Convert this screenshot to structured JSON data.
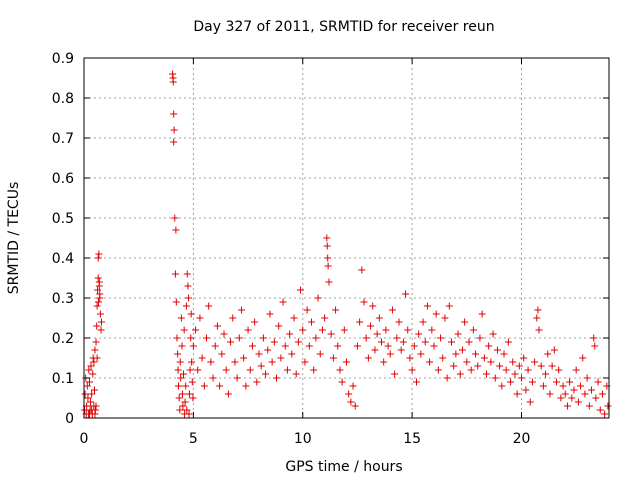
{
  "chart_data": {
    "type": "scatter",
    "title": "Day 327 of 2011, SRMTID for receiver reun",
    "xlabel": "GPS time / hours",
    "ylabel": "SRMTID / TECUs",
    "xlim": [
      0,
      24
    ],
    "ylim": [
      0,
      0.9
    ],
    "x_ticks": [
      0,
      5,
      10,
      15,
      20
    ],
    "y_ticks": [
      0,
      0.1,
      0.2,
      0.3,
      0.4,
      0.5,
      0.6,
      0.7,
      0.8,
      0.9
    ],
    "x_tick_labels": [
      "0",
      "5",
      "10",
      "15",
      "20"
    ],
    "y_tick_labels": [
      "0",
      "0.1",
      "0.2",
      "0.3",
      "0.4",
      "0.5",
      "0.6",
      "0.7",
      "0.8",
      "0.9"
    ],
    "grid": true,
    "marker": "+",
    "series": [
      {
        "name": "reun",
        "color": "#e00000",
        "points": [
          [
            0.02,
            0.02
          ],
          [
            0.05,
            0.06
          ],
          [
            0.08,
            0.1
          ],
          [
            0.1,
            0.01
          ],
          [
            0.12,
            0.03
          ],
          [
            0.15,
            0.08
          ],
          [
            0.18,
            0.05
          ],
          [
            0.2,
            0.01
          ],
          [
            0.22,
            0.12
          ],
          [
            0.25,
            0.09
          ],
          [
            0.28,
            0.02
          ],
          [
            0.3,
            0.04
          ],
          [
            0.32,
            0.13
          ],
          [
            0.35,
            0.06
          ],
          [
            0.38,
            0.01
          ],
          [
            0.4,
            0.11
          ],
          [
            0.42,
            0.15
          ],
          [
            0.45,
            0.03
          ],
          [
            0.48,
            0.07
          ],
          [
            0.5,
            0.17
          ],
          [
            0.52,
            0.02
          ],
          [
            0.55,
            0.19
          ],
          [
            0.58,
            0.23
          ],
          [
            0.6,
            0.28
          ],
          [
            0.62,
            0.32
          ],
          [
            0.65,
            0.35
          ],
          [
            0.68,
            0.41
          ],
          [
            0.7,
            0.33
          ],
          [
            0.72,
            0.3
          ],
          [
            0.75,
            0.26
          ],
          [
            0.78,
            0.22
          ],
          [
            0.8,
            0.24
          ],
          [
            0.65,
            0.4
          ],
          [
            0.7,
            0.34
          ],
          [
            0.72,
            0.31
          ],
          [
            0.66,
            0.29
          ],
          [
            0.6,
            0.15
          ],
          [
            0.55,
            0.03
          ],
          [
            0.5,
            0.01
          ],
          [
            0.45,
            0.14
          ],
          [
            0.35,
            0.02
          ],
          [
            0.25,
            0.01
          ],
          [
            4.05,
            0.86
          ],
          [
            4.07,
            0.85
          ],
          [
            4.08,
            0.84
          ],
          [
            4.1,
            0.76
          ],
          [
            4.12,
            0.72
          ],
          [
            4.1,
            0.69
          ],
          [
            4.15,
            0.5
          ],
          [
            4.2,
            0.47
          ],
          [
            4.18,
            0.36
          ],
          [
            4.22,
            0.29
          ],
          [
            4.25,
            0.2
          ],
          [
            4.28,
            0.16
          ],
          [
            4.3,
            0.12
          ],
          [
            4.32,
            0.08
          ],
          [
            4.35,
            0.05
          ],
          [
            4.38,
            0.02
          ],
          [
            4.4,
            0.14
          ],
          [
            4.42,
            0.1
          ],
          [
            4.45,
            0.25
          ],
          [
            4.48,
            0.18
          ],
          [
            4.5,
            0.06
          ],
          [
            4.52,
            0.03
          ],
          [
            4.55,
            0.11
          ],
          [
            4.58,
            0.22
          ],
          [
            4.6,
            0.01
          ],
          [
            4.62,
            0.04
          ],
          [
            4.65,
            0.08
          ],
          [
            4.68,
            0.28
          ],
          [
            4.7,
            0.02
          ],
          [
            4.72,
            0.36
          ],
          [
            4.75,
            0.33
          ],
          [
            4.78,
            0.3
          ],
          [
            4.8,
            0.01
          ],
          [
            4.82,
            0.06
          ],
          [
            4.85,
            0.12
          ],
          [
            4.88,
            0.2
          ],
          [
            4.9,
            0.26
          ],
          [
            4.92,
            0.14
          ],
          [
            4.95,
            0.09
          ],
          [
            4.98,
            0.05
          ],
          [
            5.0,
            0.18
          ],
          [
            5.1,
            0.22
          ],
          [
            5.2,
            0.12
          ],
          [
            5.3,
            0.25
          ],
          [
            5.4,
            0.15
          ],
          [
            5.5,
            0.08
          ],
          [
            5.6,
            0.2
          ],
          [
            5.7,
            0.28
          ],
          [
            5.8,
            0.14
          ],
          [
            5.9,
            0.1
          ],
          [
            6.0,
            0.18
          ],
          [
            6.1,
            0.23
          ],
          [
            6.2,
            0.08
          ],
          [
            6.3,
            0.16
          ],
          [
            6.4,
            0.21
          ],
          [
            6.5,
            0.12
          ],
          [
            6.6,
            0.06
          ],
          [
            6.7,
            0.19
          ],
          [
            6.8,
            0.25
          ],
          [
            6.9,
            0.14
          ],
          [
            7.0,
            0.1
          ],
          [
            7.1,
            0.2
          ],
          [
            7.2,
            0.27
          ],
          [
            7.3,
            0.15
          ],
          [
            7.4,
            0.08
          ],
          [
            7.5,
            0.22
          ],
          [
            7.6,
            0.12
          ],
          [
            7.7,
            0.18
          ],
          [
            7.8,
            0.24
          ],
          [
            7.9,
            0.09
          ],
          [
            8.0,
            0.16
          ],
          [
            8.1,
            0.13
          ],
          [
            8.2,
            0.2
          ],
          [
            8.3,
            0.11
          ],
          [
            8.4,
            0.17
          ],
          [
            8.5,
            0.26
          ],
          [
            8.6,
            0.14
          ],
          [
            8.7,
            0.19
          ],
          [
            8.8,
            0.1
          ],
          [
            8.9,
            0.23
          ],
          [
            9.0,
            0.15
          ],
          [
            9.1,
            0.29
          ],
          [
            9.2,
            0.18
          ],
          [
            9.3,
            0.12
          ],
          [
            9.4,
            0.21
          ],
          [
            9.5,
            0.16
          ],
          [
            9.6,
            0.25
          ],
          [
            9.7,
            0.11
          ],
          [
            9.8,
            0.19
          ],
          [
            9.9,
            0.32
          ],
          [
            10.0,
            0.22
          ],
          [
            10.1,
            0.14
          ],
          [
            10.2,
            0.27
          ],
          [
            10.3,
            0.18
          ],
          [
            10.4,
            0.24
          ],
          [
            10.5,
            0.12
          ],
          [
            10.6,
            0.2
          ],
          [
            10.7,
            0.3
          ],
          [
            10.8,
            0.16
          ],
          [
            10.9,
            0.22
          ],
          [
            11.0,
            0.25
          ],
          [
            11.1,
            0.45
          ],
          [
            11.12,
            0.43
          ],
          [
            11.14,
            0.4
          ],
          [
            11.16,
            0.38
          ],
          [
            11.2,
            0.34
          ],
          [
            11.3,
            0.21
          ],
          [
            11.4,
            0.15
          ],
          [
            11.5,
            0.27
          ],
          [
            11.6,
            0.18
          ],
          [
            11.7,
            0.12
          ],
          [
            11.8,
            0.09
          ],
          [
            11.9,
            0.22
          ],
          [
            12.0,
            0.14
          ],
          [
            12.1,
            0.06
          ],
          [
            12.2,
            0.04
          ],
          [
            12.3,
            0.08
          ],
          [
            12.4,
            0.03
          ],
          [
            12.5,
            0.18
          ],
          [
            12.6,
            0.24
          ],
          [
            12.7,
            0.37
          ],
          [
            12.8,
            0.29
          ],
          [
            12.9,
            0.2
          ],
          [
            13.0,
            0.15
          ],
          [
            13.1,
            0.23
          ],
          [
            13.2,
            0.28
          ],
          [
            13.3,
            0.17
          ],
          [
            13.4,
            0.21
          ],
          [
            13.5,
            0.25
          ],
          [
            13.6,
            0.19
          ],
          [
            13.7,
            0.14
          ],
          [
            13.8,
            0.22
          ],
          [
            13.9,
            0.18
          ],
          [
            14.0,
            0.16
          ],
          [
            14.1,
            0.27
          ],
          [
            14.2,
            0.11
          ],
          [
            14.3,
            0.2
          ],
          [
            14.4,
            0.24
          ],
          [
            14.5,
            0.17
          ],
          [
            14.6,
            0.19
          ],
          [
            14.7,
            0.31
          ],
          [
            14.8,
            0.22
          ],
          [
            14.9,
            0.15
          ],
          [
            15.0,
            0.12
          ],
          [
            15.1,
            0.18
          ],
          [
            15.2,
            0.09
          ],
          [
            15.3,
            0.21
          ],
          [
            15.4,
            0.16
          ],
          [
            15.5,
            0.24
          ],
          [
            15.6,
            0.19
          ],
          [
            15.7,
            0.28
          ],
          [
            15.8,
            0.14
          ],
          [
            15.9,
            0.22
          ],
          [
            16.0,
            0.18
          ],
          [
            16.1,
            0.26
          ],
          [
            16.2,
            0.12
          ],
          [
            16.3,
            0.2
          ],
          [
            16.4,
            0.15
          ],
          [
            16.5,
            0.25
          ],
          [
            16.6,
            0.1
          ],
          [
            16.7,
            0.28
          ],
          [
            16.8,
            0.19
          ],
          [
            16.9,
            0.13
          ],
          [
            17.0,
            0.16
          ],
          [
            17.1,
            0.21
          ],
          [
            17.2,
            0.11
          ],
          [
            17.3,
            0.17
          ],
          [
            17.4,
            0.24
          ],
          [
            17.5,
            0.14
          ],
          [
            17.6,
            0.19
          ],
          [
            17.7,
            0.12
          ],
          [
            17.8,
            0.22
          ],
          [
            17.9,
            0.16
          ],
          [
            18.0,
            0.13
          ],
          [
            18.1,
            0.2
          ],
          [
            18.2,
            0.26
          ],
          [
            18.3,
            0.15
          ],
          [
            18.4,
            0.11
          ],
          [
            18.5,
            0.18
          ],
          [
            18.6,
            0.14
          ],
          [
            18.7,
            0.21
          ],
          [
            18.8,
            0.1
          ],
          [
            18.9,
            0.17
          ],
          [
            19.0,
            0.13
          ],
          [
            19.1,
            0.08
          ],
          [
            19.2,
            0.16
          ],
          [
            19.3,
            0.12
          ],
          [
            19.4,
            0.19
          ],
          [
            19.5,
            0.09
          ],
          [
            19.6,
            0.14
          ],
          [
            19.7,
            0.11
          ],
          [
            19.8,
            0.06
          ],
          [
            19.9,
            0.13
          ],
          [
            20.0,
            0.1
          ],
          [
            20.1,
            0.15
          ],
          [
            20.2,
            0.07
          ],
          [
            20.3,
            0.12
          ],
          [
            20.4,
            0.04
          ],
          [
            20.5,
            0.09
          ],
          [
            20.6,
            0.14
          ],
          [
            20.7,
            0.25
          ],
          [
            20.75,
            0.27
          ],
          [
            20.8,
            0.22
          ],
          [
            20.9,
            0.13
          ],
          [
            21.0,
            0.08
          ],
          [
            21.1,
            0.11
          ],
          [
            21.2,
            0.16
          ],
          [
            21.3,
            0.06
          ],
          [
            21.4,
            0.13
          ],
          [
            21.5,
            0.17
          ],
          [
            21.6,
            0.09
          ],
          [
            21.7,
            0.12
          ],
          [
            21.8,
            0.05
          ],
          [
            21.9,
            0.08
          ],
          [
            22.0,
            0.06
          ],
          [
            22.1,
            0.03
          ],
          [
            22.2,
            0.09
          ],
          [
            22.3,
            0.05
          ],
          [
            22.4,
            0.07
          ],
          [
            22.5,
            0.12
          ],
          [
            22.6,
            0.04
          ],
          [
            22.7,
            0.08
          ],
          [
            22.8,
            0.15
          ],
          [
            22.9,
            0.06
          ],
          [
            23.0,
            0.1
          ],
          [
            23.1,
            0.03
          ],
          [
            23.2,
            0.07
          ],
          [
            23.3,
            0.2
          ],
          [
            23.35,
            0.18
          ],
          [
            23.4,
            0.05
          ],
          [
            23.5,
            0.09
          ],
          [
            23.6,
            0.02
          ],
          [
            23.7,
            0.06
          ],
          [
            23.8,
            0.01
          ],
          [
            23.9,
            0.08
          ],
          [
            23.95,
            0.03
          ]
        ]
      }
    ]
  }
}
